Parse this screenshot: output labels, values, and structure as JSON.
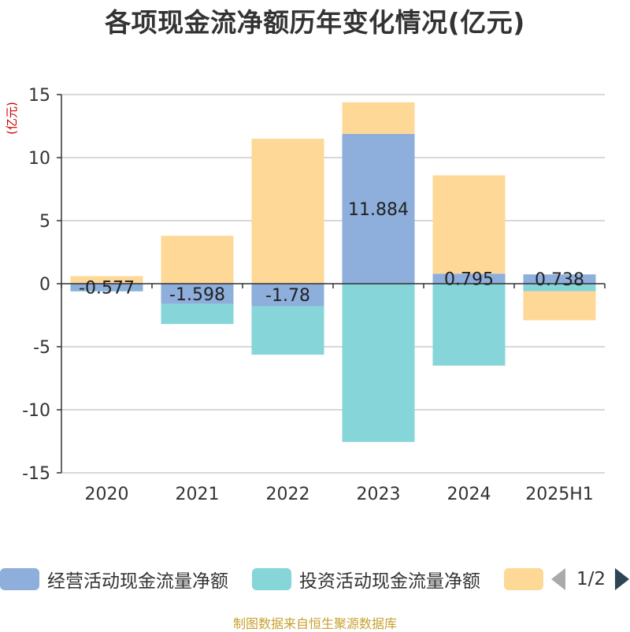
{
  "title": "各项现金流净额历年变化情况(亿元)",
  "unit_label": "(亿元)",
  "source": "制图数据来自恒生聚源数据库",
  "legend": {
    "page": "1/2"
  },
  "colors": {
    "operating": "#8eaedb",
    "investing": "#86d5d8",
    "financing": "#fed897",
    "grid": "#cccccc",
    "axis": "#333333",
    "unit": "#cc0000"
  },
  "chart_data": {
    "type": "bar",
    "stacked": true,
    "title": "各项现金流净额历年变化情况(亿元)",
    "ylabel": "(亿元)",
    "ylim": [
      -15,
      15
    ],
    "yticks": [
      15,
      10,
      5,
      0,
      -5,
      -10,
      -15
    ],
    "categories": [
      "2020",
      "2021",
      "2022",
      "2023",
      "2024",
      "2025H1"
    ],
    "series": [
      {
        "name": "经营活动现金流量净额",
        "values": [
          -0.577,
          -1.598,
          -1.78,
          11.884,
          0.795,
          0.738
        ],
        "labels": [
          "-0.577",
          "-1.598",
          "-1.78",
          "11.884",
          "0.795",
          "0.738"
        ]
      },
      {
        "name": "投资活动现金流量净额",
        "values": [
          -0.05,
          -1.6,
          -3.85,
          -12.55,
          -6.5,
          -0.6
        ]
      },
      {
        "name": "",
        "values": [
          0.6,
          3.8,
          11.5,
          2.5,
          7.8,
          -2.3
        ]
      }
    ],
    "grid": true,
    "legend_position": "bottom"
  }
}
